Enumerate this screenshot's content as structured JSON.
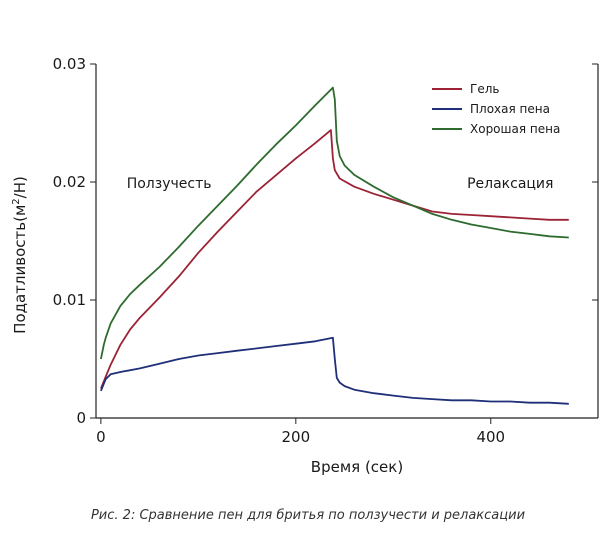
{
  "chart_data": {
    "type": "line",
    "xlabel": "Время (сек)",
    "ylabel_main": "Податливость(м",
    "ylabel_sup": "2",
    "ylabel_tail": "/Н)",
    "xlim": [
      -5,
      510
    ],
    "ylim": [
      0,
      0.03
    ],
    "x_ticks": [
      0,
      200,
      400
    ],
    "x_tick_labels": [
      "0",
      "200",
      "400"
    ],
    "y_ticks": [
      0,
      0.01,
      0.02,
      0.03
    ],
    "y_tick_labels": [
      "0",
      "0.01",
      "0.02",
      "0.03"
    ],
    "grid": false,
    "legend_position": "top-right",
    "annotations": [
      {
        "text": "Ползучесть",
        "x": 70,
        "y": 0.0195
      },
      {
        "text": "Релаксация",
        "x": 420,
        "y": 0.0195
      }
    ],
    "series": [
      {
        "name": "Гель",
        "color": "#9b2335",
        "points": [
          [
            0,
            0.0025
          ],
          [
            5,
            0.0035
          ],
          [
            10,
            0.0045
          ],
          [
            20,
            0.0062
          ],
          [
            30,
            0.0075
          ],
          [
            40,
            0.0085
          ],
          [
            60,
            0.0102
          ],
          [
            80,
            0.012
          ],
          [
            100,
            0.014
          ],
          [
            120,
            0.0158
          ],
          [
            140,
            0.0175
          ],
          [
            160,
            0.0192
          ],
          [
            180,
            0.0206
          ],
          [
            200,
            0.022
          ],
          [
            220,
            0.0233
          ],
          [
            236,
            0.0244
          ],
          [
            238,
            0.022
          ],
          [
            240,
            0.021
          ],
          [
            245,
            0.0203
          ],
          [
            260,
            0.0196
          ],
          [
            280,
            0.019
          ],
          [
            300,
            0.0185
          ],
          [
            320,
            0.018
          ],
          [
            340,
            0.0175
          ],
          [
            360,
            0.0173
          ],
          [
            380,
            0.0172
          ],
          [
            400,
            0.0171
          ],
          [
            420,
            0.017
          ],
          [
            440,
            0.0169
          ],
          [
            460,
            0.0168
          ],
          [
            480,
            0.0168
          ]
        ]
      },
      {
        "name": "Плохая пена",
        "color": "#1f2f78",
        "points": [
          [
            0,
            0.0023
          ],
          [
            5,
            0.0033
          ],
          [
            10,
            0.0037
          ],
          [
            20,
            0.0039
          ],
          [
            40,
            0.0042
          ],
          [
            60,
            0.0046
          ],
          [
            80,
            0.005
          ],
          [
            100,
            0.0053
          ],
          [
            120,
            0.0055
          ],
          [
            140,
            0.0057
          ],
          [
            160,
            0.0059
          ],
          [
            180,
            0.0061
          ],
          [
            200,
            0.0063
          ],
          [
            220,
            0.0065
          ],
          [
            238,
            0.0068
          ],
          [
            240,
            0.005
          ],
          [
            242,
            0.0034
          ],
          [
            245,
            0.003
          ],
          [
            250,
            0.0027
          ],
          [
            260,
            0.0024
          ],
          [
            280,
            0.0021
          ],
          [
            300,
            0.0019
          ],
          [
            320,
            0.0017
          ],
          [
            340,
            0.0016
          ],
          [
            360,
            0.0015
          ],
          [
            380,
            0.0015
          ],
          [
            400,
            0.0014
          ],
          [
            420,
            0.0014
          ],
          [
            440,
            0.0013
          ],
          [
            460,
            0.0013
          ],
          [
            480,
            0.0012
          ]
        ]
      },
      {
        "name": "Хорошая пена",
        "color": "#2e6b2e",
        "points": [
          [
            0,
            0.005
          ],
          [
            3,
            0.0062
          ],
          [
            5,
            0.0068
          ],
          [
            10,
            0.008
          ],
          [
            20,
            0.0095
          ],
          [
            30,
            0.0105
          ],
          [
            40,
            0.0113
          ],
          [
            60,
            0.0128
          ],
          [
            80,
            0.0145
          ],
          [
            100,
            0.0163
          ],
          [
            120,
            0.018
          ],
          [
            140,
            0.0197
          ],
          [
            160,
            0.0215
          ],
          [
            180,
            0.0232
          ],
          [
            200,
            0.0248
          ],
          [
            220,
            0.0265
          ],
          [
            238,
            0.028
          ],
          [
            240,
            0.027
          ],
          [
            242,
            0.0235
          ],
          [
            245,
            0.0222
          ],
          [
            250,
            0.0214
          ],
          [
            260,
            0.0206
          ],
          [
            280,
            0.0196
          ],
          [
            300,
            0.0187
          ],
          [
            320,
            0.018
          ],
          [
            340,
            0.0173
          ],
          [
            360,
            0.0168
          ],
          [
            380,
            0.0164
          ],
          [
            400,
            0.0161
          ],
          [
            420,
            0.0158
          ],
          [
            440,
            0.0156
          ],
          [
            460,
            0.0154
          ],
          [
            480,
            0.0153
          ]
        ]
      }
    ]
  },
  "caption": "Рис. 2: Сравнение пен для бритья по ползучести и релаксации"
}
